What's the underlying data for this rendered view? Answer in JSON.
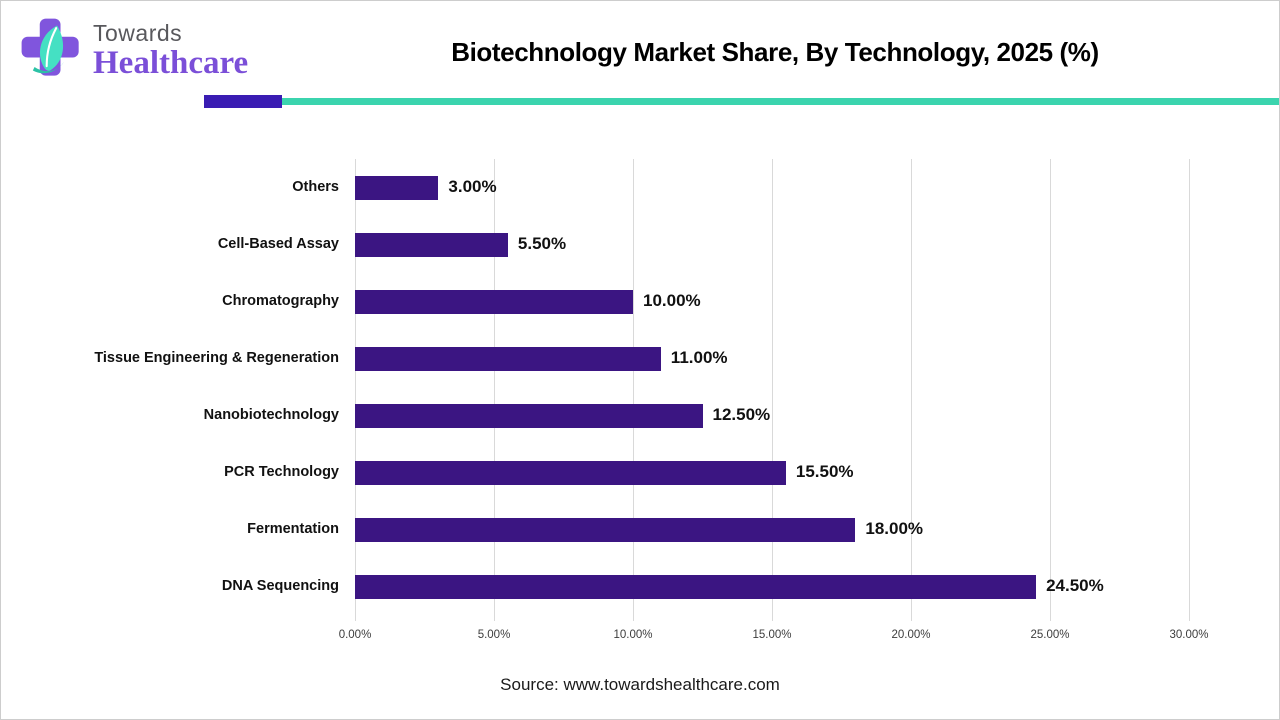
{
  "header": {
    "brand_top": "Towards",
    "brand_bottom": "Healthcare",
    "title": "Biotechnology Market Share, By Technology, 2025 (%)"
  },
  "divider": {
    "accent_color": "#3a1cb3",
    "line_color": "#3bd4ae"
  },
  "chart_data": {
    "type": "bar",
    "orientation": "horizontal",
    "title": "Biotechnology Market Share, By Technology, 2025 (%)",
    "xlabel": "",
    "ylabel": "",
    "xlim": [
      0,
      30
    ],
    "grid": true,
    "bar_color": "#3b1582",
    "categories": [
      "Others",
      "Cell-Based Assay",
      "Chromatography",
      "Tissue Engineering & Regeneration",
      "Nanobiotechnology",
      "PCR Technology",
      "Fermentation",
      "DNA Sequencing"
    ],
    "values": [
      3.0,
      5.5,
      10.0,
      11.0,
      12.5,
      15.5,
      18.0,
      24.5
    ],
    "value_labels": [
      "3.00%",
      "5.50%",
      "10.00%",
      "11.00%",
      "12.50%",
      "15.50%",
      "18.00%",
      "24.50%"
    ],
    "x_ticks": [
      "0.00%",
      "5.00%",
      "10.00%",
      "15.00%",
      "20.00%",
      "25.00%",
      "30.00%"
    ]
  },
  "footer": {
    "source": "Source: www.towardshealthcare.com"
  },
  "logo_colors": {
    "cross": "#8055dd",
    "leaf": "#45e0c3",
    "leaf_dark": "#2cc2a6"
  }
}
